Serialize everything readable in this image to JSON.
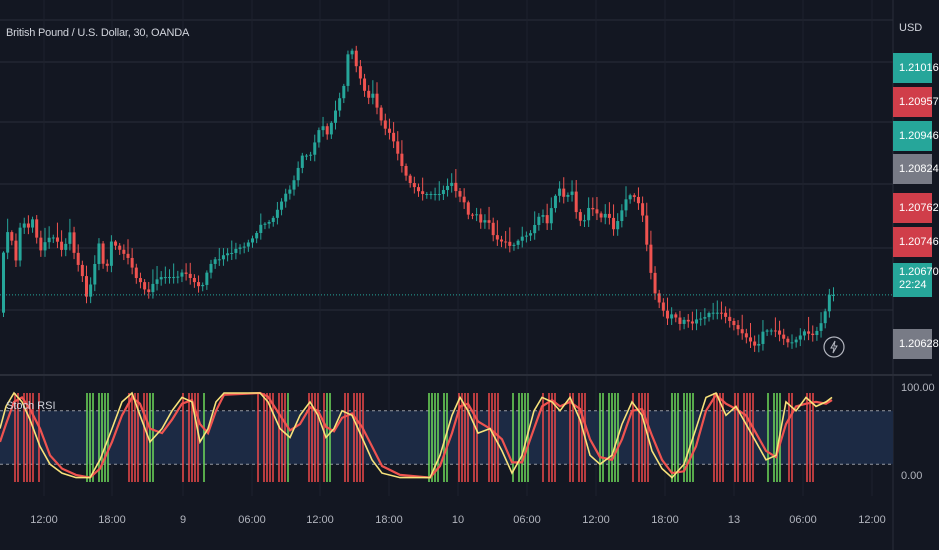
{
  "header": {
    "symbol_title": "British Pound / U.S. Dollar, 30, OANDA"
  },
  "currency_label": "USD",
  "indicator": {
    "title": "Stoch RSI",
    "levels": {
      "upper_label": "100.00",
      "lower_label": "0.00"
    }
  },
  "price_badges": [
    {
      "value": "1.21016",
      "color": "#26a69a"
    },
    {
      "value": "1.20957",
      "color": "#d03e4a"
    },
    {
      "value": "1.20946",
      "color": "#26a69a"
    },
    {
      "value": "1.20824",
      "color": "#787b86"
    },
    {
      "value": "1.20762",
      "color": "#d03e4a"
    },
    {
      "value": "1.20746",
      "color": "#d03e4a"
    },
    {
      "value": "1.20670",
      "sub": "22:24",
      "color": "#26a69a"
    },
    {
      "value": "1.20628",
      "color": "#787b86"
    }
  ],
  "colors": {
    "up": "#26a69a",
    "down": "#ef5350",
    "k_line": "#f7e27b",
    "d_line": "#ef5350",
    "band": "#1c2a44",
    "bull_bar": "#6fdc5a",
    "bear_bar": "#f04a4a"
  },
  "x_ticks": [
    "12:00",
    "18:00",
    "9",
    "06:00",
    "12:00",
    "18:00",
    "10",
    "06:00",
    "12:00",
    "18:00",
    "13",
    "06:00",
    "12:00"
  ],
  "chart_data": {
    "type": "candlestick",
    "title": "British Pound / U.S. Dollar, 30, OANDA",
    "timeframe": "30",
    "current_price": 1.2067,
    "countdown": "22:24",
    "x_tick_labels": [
      "12:00",
      "18:00",
      "9",
      "06:00",
      "12:00",
      "18:00",
      "10",
      "06:00",
      "12:00",
      "18:00",
      "13",
      "06:00",
      "12:00"
    ],
    "price_path": [
      [
        0,
        1.2064
      ],
      [
        6,
        1.2074
      ],
      [
        12,
        1.2079
      ],
      [
        18,
        1.2072
      ],
      [
        24,
        1.208
      ],
      [
        30,
        1.2078
      ],
      [
        36,
        1.208
      ],
      [
        42,
        1.2074
      ],
      [
        48,
        1.2076
      ],
      [
        54,
        1.2077
      ],
      [
        60,
        1.2076
      ],
      [
        66,
        1.2074
      ],
      [
        72,
        1.2078
      ],
      [
        78,
        1.2073
      ],
      [
        84,
        1.2071
      ],
      [
        90,
        1.2066
      ],
      [
        96,
        1.2071
      ],
      [
        102,
        1.2076
      ],
      [
        108,
        1.207
      ],
      [
        114,
        1.2076
      ],
      [
        120,
        1.2075
      ],
      [
        126,
        1.2074
      ],
      [
        132,
        1.2073
      ],
      [
        138,
        1.207
      ],
      [
        144,
        1.2069
      ],
      [
        150,
        1.2067
      ],
      [
        156,
        1.2069
      ],
      [
        162,
        1.207
      ],
      [
        168,
        1.207
      ],
      [
        174,
        1.207
      ],
      [
        180,
        1.207
      ],
      [
        186,
        1.2071
      ],
      [
        192,
        1.207
      ],
      [
        198,
        1.2069
      ],
      [
        204,
        1.2068
      ],
      [
        210,
        1.2071
      ],
      [
        216,
        1.2073
      ],
      [
        222,
        1.2073
      ],
      [
        228,
        1.2074
      ],
      [
        234,
        1.2074
      ],
      [
        240,
        1.2075
      ],
      [
        246,
        1.2075
      ],
      [
        252,
        1.2076
      ],
      [
        258,
        1.2077
      ],
      [
        264,
        1.2079
      ],
      [
        270,
        1.2079
      ],
      [
        276,
        1.208
      ],
      [
        282,
        1.2082
      ],
      [
        288,
        1.2084
      ],
      [
        294,
        1.2085
      ],
      [
        300,
        1.2088
      ],
      [
        306,
        1.2091
      ],
      [
        312,
        1.209
      ],
      [
        318,
        1.2093
      ],
      [
        324,
        1.2096
      ],
      [
        330,
        1.2094
      ],
      [
        336,
        1.2097
      ],
      [
        342,
        1.21
      ],
      [
        348,
        1.2103
      ],
      [
        352,
        1.211
      ],
      [
        358,
        1.2106
      ],
      [
        364,
        1.2103
      ],
      [
        370,
        1.21
      ],
      [
        376,
        1.2101
      ],
      [
        382,
        1.2097
      ],
      [
        388,
        1.2095
      ],
      [
        394,
        1.2094
      ],
      [
        400,
        1.2091
      ],
      [
        406,
        1.2088
      ],
      [
        412,
        1.2086
      ],
      [
        418,
        1.2085
      ],
      [
        424,
        1.2084
      ],
      [
        430,
        1.2084
      ],
      [
        436,
        1.2084
      ],
      [
        442,
        1.2084
      ],
      [
        448,
        1.2085
      ],
      [
        454,
        1.2086
      ],
      [
        460,
        1.2084
      ],
      [
        466,
        1.2083
      ],
      [
        472,
        1.208
      ],
      [
        478,
        1.2081
      ],
      [
        484,
        1.2079
      ],
      [
        490,
        1.208
      ],
      [
        496,
        1.2077
      ],
      [
        502,
        1.2076
      ],
      [
        508,
        1.2076
      ],
      [
        514,
        1.2075
      ],
      [
        520,
        1.2076
      ],
      [
        526,
        1.2077
      ],
      [
        532,
        1.2077
      ],
      [
        538,
        1.2079
      ],
      [
        544,
        1.2081
      ],
      [
        550,
        1.2079
      ],
      [
        556,
        1.2083
      ],
      [
        562,
        1.2085
      ],
      [
        568,
        1.2083
      ],
      [
        574,
        1.2085
      ],
      [
        580,
        1.208
      ],
      [
        586,
        1.2079
      ],
      [
        592,
        1.2082
      ],
      [
        598,
        1.2081
      ],
      [
        604,
        1.208
      ],
      [
        610,
        1.2081
      ],
      [
        616,
        1.2078
      ],
      [
        622,
        1.208
      ],
      [
        628,
        1.2083
      ],
      [
        634,
        1.2084
      ],
      [
        640,
        1.2083
      ],
      [
        646,
        1.208
      ],
      [
        652,
        1.2072
      ],
      [
        658,
        1.2067
      ],
      [
        664,
        1.2065
      ],
      [
        670,
        1.2063
      ],
      [
        676,
        1.2064
      ],
      [
        682,
        1.2062
      ],
      [
        688,
        1.2063
      ],
      [
        694,
        1.2062
      ],
      [
        700,
        1.2063
      ],
      [
        706,
        1.2063
      ],
      [
        712,
        1.2064
      ],
      [
        718,
        1.2064
      ],
      [
        724,
        1.2064
      ],
      [
        730,
        1.2063
      ],
      [
        736,
        1.2062
      ],
      [
        742,
        1.2061
      ],
      [
        748,
        1.206
      ],
      [
        754,
        1.2059
      ],
      [
        760,
        1.2058
      ],
      [
        766,
        1.2061
      ],
      [
        772,
        1.2061
      ],
      [
        778,
        1.2061
      ],
      [
        784,
        1.206
      ],
      [
        790,
        1.2059
      ],
      [
        796,
        1.2059
      ],
      [
        802,
        1.206
      ],
      [
        808,
        1.2061
      ],
      [
        814,
        1.206
      ],
      [
        820,
        1.2061
      ],
      [
        826,
        1.2063
      ],
      [
        832,
        1.2067
      ]
    ],
    "stoch_rsi": {
      "range": [
        0,
        100
      ],
      "levels": [
        80,
        20
      ],
      "k_path": [
        [
          0,
          60
        ],
        [
          6,
          85
        ],
        [
          14,
          100
        ],
        [
          22,
          90
        ],
        [
          30,
          70
        ],
        [
          40,
          40
        ],
        [
          50,
          20
        ],
        [
          62,
          10
        ],
        [
          76,
          5
        ],
        [
          90,
          5
        ],
        [
          100,
          25
        ],
        [
          112,
          60
        ],
        [
          122,
          90
        ],
        [
          132,
          100
        ],
        [
          140,
          75
        ],
        [
          150,
          45
        ],
        [
          162,
          60
        ],
        [
          172,
          80
        ],
        [
          182,
          95
        ],
        [
          192,
          90
        ],
        [
          200,
          45
        ],
        [
          208,
          60
        ],
        [
          216,
          90
        ],
        [
          224,
          100
        ],
        [
          260,
          100
        ],
        [
          268,
          90
        ],
        [
          280,
          60
        ],
        [
          290,
          50
        ],
        [
          300,
          75
        ],
        [
          310,
          90
        ],
        [
          318,
          75
        ],
        [
          326,
          50
        ],
        [
          334,
          60
        ],
        [
          342,
          80
        ],
        [
          352,
          75
        ],
        [
          362,
          50
        ],
        [
          372,
          25
        ],
        [
          382,
          10
        ],
        [
          400,
          5
        ],
        [
          430,
          5
        ],
        [
          440,
          30
        ],
        [
          452,
          75
        ],
        [
          460,
          95
        ],
        [
          468,
          80
        ],
        [
          478,
          55
        ],
        [
          490,
          60
        ],
        [
          502,
          35
        ],
        [
          512,
          10
        ],
        [
          522,
          30
        ],
        [
          534,
          80
        ],
        [
          542,
          95
        ],
        [
          552,
          90
        ],
        [
          560,
          80
        ],
        [
          570,
          95
        ],
        [
          580,
          70
        ],
        [
          590,
          30
        ],
        [
          600,
          20
        ],
        [
          612,
          30
        ],
        [
          622,
          65
        ],
        [
          632,
          90
        ],
        [
          642,
          75
        ],
        [
          652,
          35
        ],
        [
          662,
          15
        ],
        [
          672,
          5
        ],
        [
          684,
          20
        ],
        [
          696,
          60
        ],
        [
          706,
          95
        ],
        [
          716,
          100
        ],
        [
          726,
          75
        ],
        [
          736,
          85
        ],
        [
          746,
          65
        ],
        [
          756,
          45
        ],
        [
          766,
          25
        ],
        [
          776,
          30
        ],
        [
          786,
          90
        ],
        [
          796,
          80
        ],
        [
          806,
          95
        ],
        [
          816,
          85
        ],
        [
          826,
          90
        ],
        [
          832,
          95
        ]
      ],
      "d_path": [
        [
          0,
          45
        ],
        [
          6,
          65
        ],
        [
          14,
          90
        ],
        [
          22,
          95
        ],
        [
          30,
          82
        ],
        [
          40,
          60
        ],
        [
          50,
          30
        ],
        [
          62,
          15
        ],
        [
          76,
          8
        ],
        [
          90,
          5
        ],
        [
          100,
          15
        ],
        [
          112,
          45
        ],
        [
          122,
          75
        ],
        [
          132,
          95
        ],
        [
          140,
          88
        ],
        [
          150,
          60
        ],
        [
          162,
          55
        ],
        [
          172,
          70
        ],
        [
          182,
          88
        ],
        [
          192,
          92
        ],
        [
          200,
          65
        ],
        [
          208,
          55
        ],
        [
          216,
          80
        ],
        [
          224,
          98
        ],
        [
          260,
          100
        ],
        [
          268,
          96
        ],
        [
          280,
          75
        ],
        [
          290,
          58
        ],
        [
          300,
          65
        ],
        [
          310,
          84
        ],
        [
          318,
          80
        ],
        [
          326,
          62
        ],
        [
          334,
          57
        ],
        [
          342,
          72
        ],
        [
          352,
          77
        ],
        [
          362,
          62
        ],
        [
          372,
          40
        ],
        [
          382,
          18
        ],
        [
          400,
          8
        ],
        [
          430,
          5
        ],
        [
          440,
          18
        ],
        [
          452,
          55
        ],
        [
          460,
          85
        ],
        [
          468,
          88
        ],
        [
          478,
          68
        ],
        [
          490,
          60
        ],
        [
          502,
          48
        ],
        [
          512,
          22
        ],
        [
          522,
          22
        ],
        [
          534,
          60
        ],
        [
          542,
          85
        ],
        [
          552,
          92
        ],
        [
          560,
          85
        ],
        [
          570,
          90
        ],
        [
          580,
          82
        ],
        [
          590,
          48
        ],
        [
          600,
          28
        ],
        [
          612,
          25
        ],
        [
          622,
          48
        ],
        [
          632,
          80
        ],
        [
          642,
          82
        ],
        [
          652,
          52
        ],
        [
          662,
          25
        ],
        [
          672,
          10
        ],
        [
          684,
          12
        ],
        [
          696,
          40
        ],
        [
          706,
          80
        ],
        [
          716,
          98
        ],
        [
          726,
          88
        ],
        [
          736,
          82
        ],
        [
          746,
          75
        ],
        [
          756,
          55
        ],
        [
          766,
          35
        ],
        [
          776,
          28
        ],
        [
          786,
          65
        ],
        [
          796,
          85
        ],
        [
          806,
          88
        ],
        [
          816,
          90
        ],
        [
          826,
          88
        ],
        [
          832,
          92
        ]
      ]
    }
  }
}
